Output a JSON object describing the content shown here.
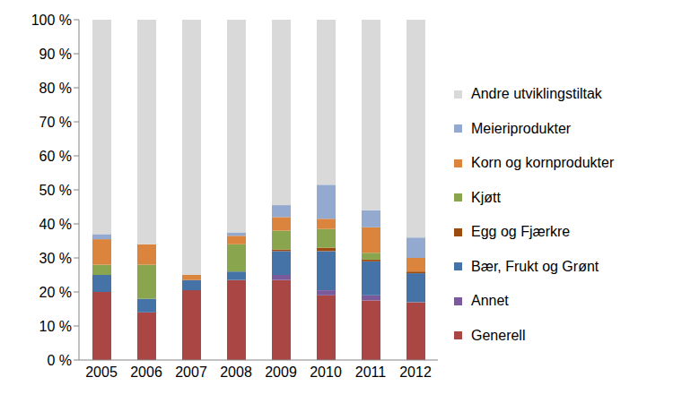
{
  "chart_data": {
    "type": "bar",
    "stacked": true,
    "legend": "right",
    "grid": false,
    "categories": [
      "2005",
      "2006",
      "2007",
      "2008",
      "2009",
      "2010",
      "2011",
      "2012"
    ],
    "ylim": [
      0,
      100
    ],
    "yticks": [
      {
        "value": 0,
        "label": "0 %"
      },
      {
        "value": 10,
        "label": "10 %"
      },
      {
        "value": 20,
        "label": "20 %"
      },
      {
        "value": 30,
        "label": "30 %"
      },
      {
        "value": 40,
        "label": "40 %"
      },
      {
        "value": 50,
        "label": "50 %"
      },
      {
        "value": 60,
        "label": "60 %"
      },
      {
        "value": 70,
        "label": "70 %"
      },
      {
        "value": 80,
        "label": "80 %"
      },
      {
        "value": 90,
        "label": "90 %"
      },
      {
        "value": 100,
        "label": "100 %"
      }
    ],
    "series": [
      {
        "name": "Generell",
        "color": "#aa4643",
        "values": [
          20,
          14,
          20.5,
          23.5,
          23.5,
          19,
          17.5,
          17
        ]
      },
      {
        "name": "Annet",
        "color": "#7b5a9c",
        "values": [
          0,
          0,
          0,
          0,
          1.5,
          1.5,
          1.5,
          0
        ]
      },
      {
        "name": "Bær, Frukt og Grønt",
        "color": "#4572a7",
        "values": [
          5,
          4,
          3,
          2.5,
          7,
          11.5,
          10,
          8.5
        ]
      },
      {
        "name": "Egg og Fjærkre",
        "color": "#9c4a0e",
        "values": [
          0,
          0,
          0,
          0,
          0.5,
          1,
          0.5,
          0.5
        ]
      },
      {
        "name": "Kjøtt",
        "color": "#89a54e",
        "values": [
          3,
          10,
          0,
          8,
          5.5,
          5.5,
          2,
          0
        ]
      },
      {
        "name": "Korn og kornprodukter",
        "color": "#db843d",
        "values": [
          7.5,
          6,
          1.5,
          2.5,
          4,
          3,
          7.5,
          4
        ]
      },
      {
        "name": "Meieriprodukter",
        "color": "#93a9cf",
        "values": [
          1.5,
          0,
          0,
          1,
          3.5,
          10,
          5,
          6
        ]
      },
      {
        "name": "Andre utviklingstiltak",
        "color": "#d9d9d9",
        "values": [
          63,
          66,
          75,
          62.5,
          54.5,
          48.5,
          56,
          64
        ]
      }
    ]
  }
}
